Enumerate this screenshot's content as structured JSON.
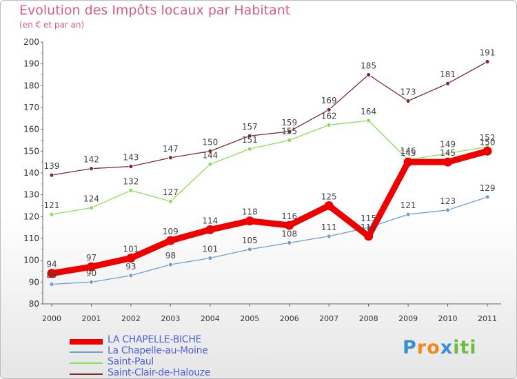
{
  "title": "Evolution des Impôts locaux par Habitant",
  "subtitle": "(en € et par an)",
  "brand": {
    "letters": [
      "P",
      "r",
      "o",
      "x",
      "i",
      "t",
      "i"
    ],
    "colors": [
      "#3a8fd0",
      "#f08a1c",
      "#f08a1c",
      "#3a8fd0",
      "#6cbf3a",
      "#6cbf3a",
      "#6cbf3a"
    ]
  },
  "chart_data": {
    "type": "line",
    "x": [
      "2000",
      "2001",
      "2002",
      "2003",
      "2004",
      "2005",
      "2006",
      "2007",
      "2008",
      "2009",
      "2010",
      "2011"
    ],
    "ylim": [
      80,
      200
    ],
    "yticks": [
      "80",
      "90",
      "100",
      "110",
      "120",
      "130",
      "140",
      "150",
      "160",
      "170",
      "180",
      "190",
      "200"
    ],
    "grid": false,
    "legend_position": "bottom-left",
    "series": [
      {
        "name": "LA CHAPELLE-BICHE",
        "color": "#ee0000",
        "values": [
          94,
          97,
          101,
          109,
          114,
          118,
          116,
          125,
          111,
          145,
          145,
          150
        ],
        "labels": [
          "94",
          "97",
          "101",
          "109",
          "114",
          "118",
          "116",
          "125",
          "111",
          "145",
          "145",
          "150"
        ]
      },
      {
        "name": "La Chapelle-au-Moine",
        "color": "#6f9fd0",
        "values": [
          89,
          90,
          93,
          98,
          101,
          105,
          108,
          111,
          115,
          121,
          123,
          129
        ],
        "labels": [
          "89",
          "90",
          "93",
          "98",
          "101",
          "105",
          "108",
          "111",
          "115",
          "121",
          "123",
          "129"
        ]
      },
      {
        "name": "Saint-Paul",
        "color": "#8fdc5e",
        "values": [
          121,
          124,
          132,
          127,
          144,
          151,
          155,
          162,
          164,
          146,
          149,
          152
        ],
        "labels": [
          "121",
          "124",
          "132",
          "127",
          "144",
          "151",
          "155",
          "162",
          "164",
          "146",
          "149",
          "152"
        ]
      },
      {
        "name": "Saint-Clair-de-Halouze",
        "color": "#7a2e2e",
        "values": [
          139,
          142,
          143,
          147,
          150,
          157,
          159,
          169,
          185,
          173,
          181,
          191
        ],
        "labels": [
          "139",
          "142",
          "143",
          "147",
          "150",
          "157",
          "159",
          "169",
          "185",
          "173",
          "181",
          "191"
        ]
      }
    ]
  }
}
